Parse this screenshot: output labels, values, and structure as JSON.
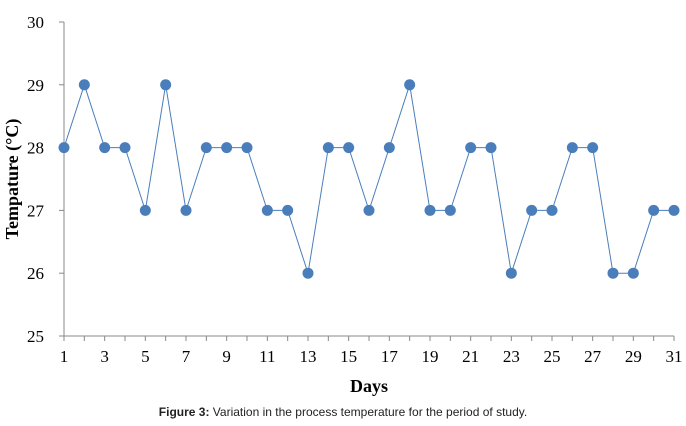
{
  "chart_data": {
    "type": "line",
    "xlabel": "Days",
    "ylabel": "Tempature (°C)",
    "x": [
      1,
      2,
      3,
      4,
      5,
      6,
      7,
      8,
      9,
      10,
      11,
      12,
      13,
      14,
      15,
      16,
      17,
      18,
      19,
      20,
      21,
      22,
      23,
      24,
      25,
      26,
      27,
      28,
      29,
      30,
      31
    ],
    "series": [
      {
        "values": [
          28,
          29,
          28,
          28,
          27,
          29,
          27,
          28,
          28,
          28,
          27,
          27,
          26,
          28,
          28,
          27,
          28,
          29,
          27,
          27,
          28,
          28,
          26,
          27,
          27,
          28,
          28,
          26,
          26,
          27,
          27
        ]
      }
    ],
    "xticks": [
      1,
      3,
      5,
      7,
      9,
      11,
      13,
      15,
      17,
      19,
      21,
      23,
      25,
      27,
      29,
      31
    ],
    "yticks": [
      25,
      26,
      27,
      28,
      29,
      30
    ],
    "xlim": [
      1,
      31
    ],
    "ylim": [
      25,
      30
    ],
    "grid": false,
    "color": "#4a7ebb"
  },
  "caption": {
    "label": "Figure 3:",
    "text": " Variation in the process temperature for the period of study."
  }
}
